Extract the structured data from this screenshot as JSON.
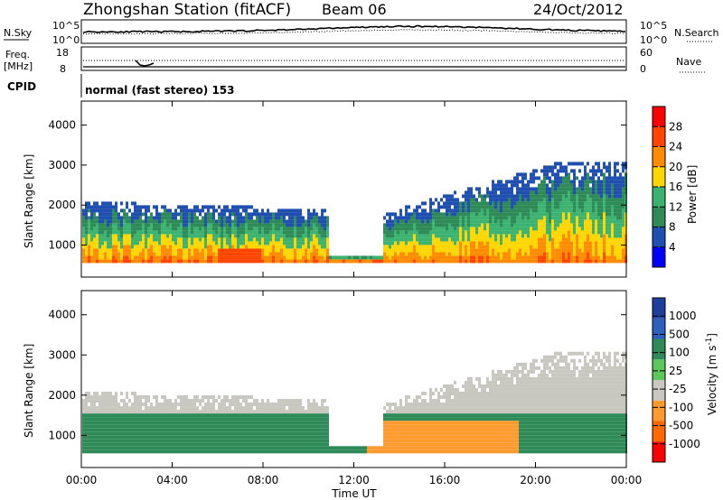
{
  "header": {
    "station": "Zhongshan Station (fitACF)",
    "beam": "Beam 06",
    "date": "24/Oct/2012"
  },
  "top_panels": {
    "noise": {
      "left_label": "N.Sky",
      "left_ticks": [
        "10^5",
        "10^0"
      ],
      "right_ticks": [
        "10^5",
        "10^0"
      ],
      "right_label": "N.Search"
    },
    "freq": {
      "left_label_1": "Freq.",
      "left_label_2": "[MHz]",
      "left_ticks": [
        "18",
        "8"
      ],
      "right_ticks": [
        "60",
        "0"
      ],
      "right_label": "Nave"
    },
    "cpid_label": "CPID",
    "cpid_text": "normal (fast stereo) 153"
  },
  "colors": {
    "power_scale": [
      "#0000ff",
      "#1f4fb0",
      "#2e8b57",
      "#3cb371",
      "#ffd700",
      "#ff8c00",
      "#ff4500",
      "#ff0000"
    ],
    "velocity_scale": [
      "#1f3f9f",
      "#2e5fbf",
      "#2e8b57",
      "#5bc85b",
      "#c8c8c0",
      "#ff9a2e",
      "#ff6a00",
      "#ff0000"
    ]
  },
  "chart_data": [
    {
      "type": "heatmap",
      "name": "power",
      "ylabel": "Slant Range [km]",
      "xlabel": "Time UT",
      "x_ticks": [
        "00:00",
        "04:00",
        "08:00",
        "12:00",
        "16:00",
        "20:00",
        "00:00"
      ],
      "y_ticks": [
        "1000",
        "2000",
        "3000",
        "4000"
      ],
      "ylim": [
        200,
        4600
      ],
      "colorbar_label": "Power [dB]",
      "colorbar_ticks": [
        "4",
        "8",
        "12",
        "16",
        "20",
        "24",
        "28"
      ],
      "colorbar_range": [
        0,
        32
      ]
    },
    {
      "type": "heatmap",
      "name": "velocity",
      "ylabel": "Slant Range [km]",
      "xlabel": "Time UT",
      "x_ticks": [
        "00:00",
        "04:00",
        "08:00",
        "12:00",
        "16:00",
        "20:00",
        "00:00"
      ],
      "y_ticks": [
        "1000",
        "2000",
        "3000",
        "4000"
      ],
      "ylim": [
        200,
        4600
      ],
      "colorbar_label": "Velocity [m s^-1]",
      "colorbar_ticks": [
        "1000",
        "500",
        "100",
        "25",
        "-25",
        "-100",
        "-500",
        "-1000"
      ]
    }
  ]
}
